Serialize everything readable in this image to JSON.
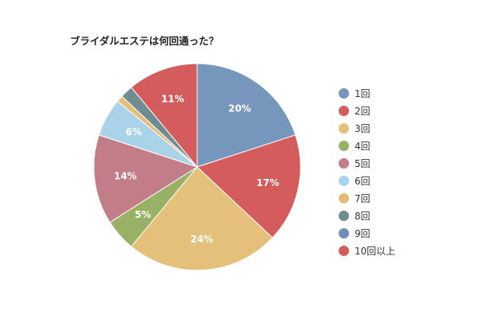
{
  "chart_data": {
    "type": "pie",
    "title": "ブライダルエステは何回通った？",
    "categories": [
      "1回",
      "2回",
      "3回",
      "4回",
      "5回",
      "6回",
      "7回",
      "8回",
      "9回",
      "10回以上"
    ],
    "values": [
      20,
      17,
      24,
      5,
      14,
      6,
      1,
      2,
      0,
      11
    ],
    "data_labels": [
      "20%",
      "17%",
      "24%",
      "5%",
      "14%",
      "6%",
      "",
      "",
      "",
      "11%"
    ],
    "colors": [
      "#7696bb",
      "#d45c5c",
      "#e5c07a",
      "#98b165",
      "#c27d88",
      "#a9d3e8",
      "#e4bc7a",
      "#6f8c93",
      "#6f8fb8",
      "#d45c5c"
    ],
    "legend_position": "right"
  }
}
